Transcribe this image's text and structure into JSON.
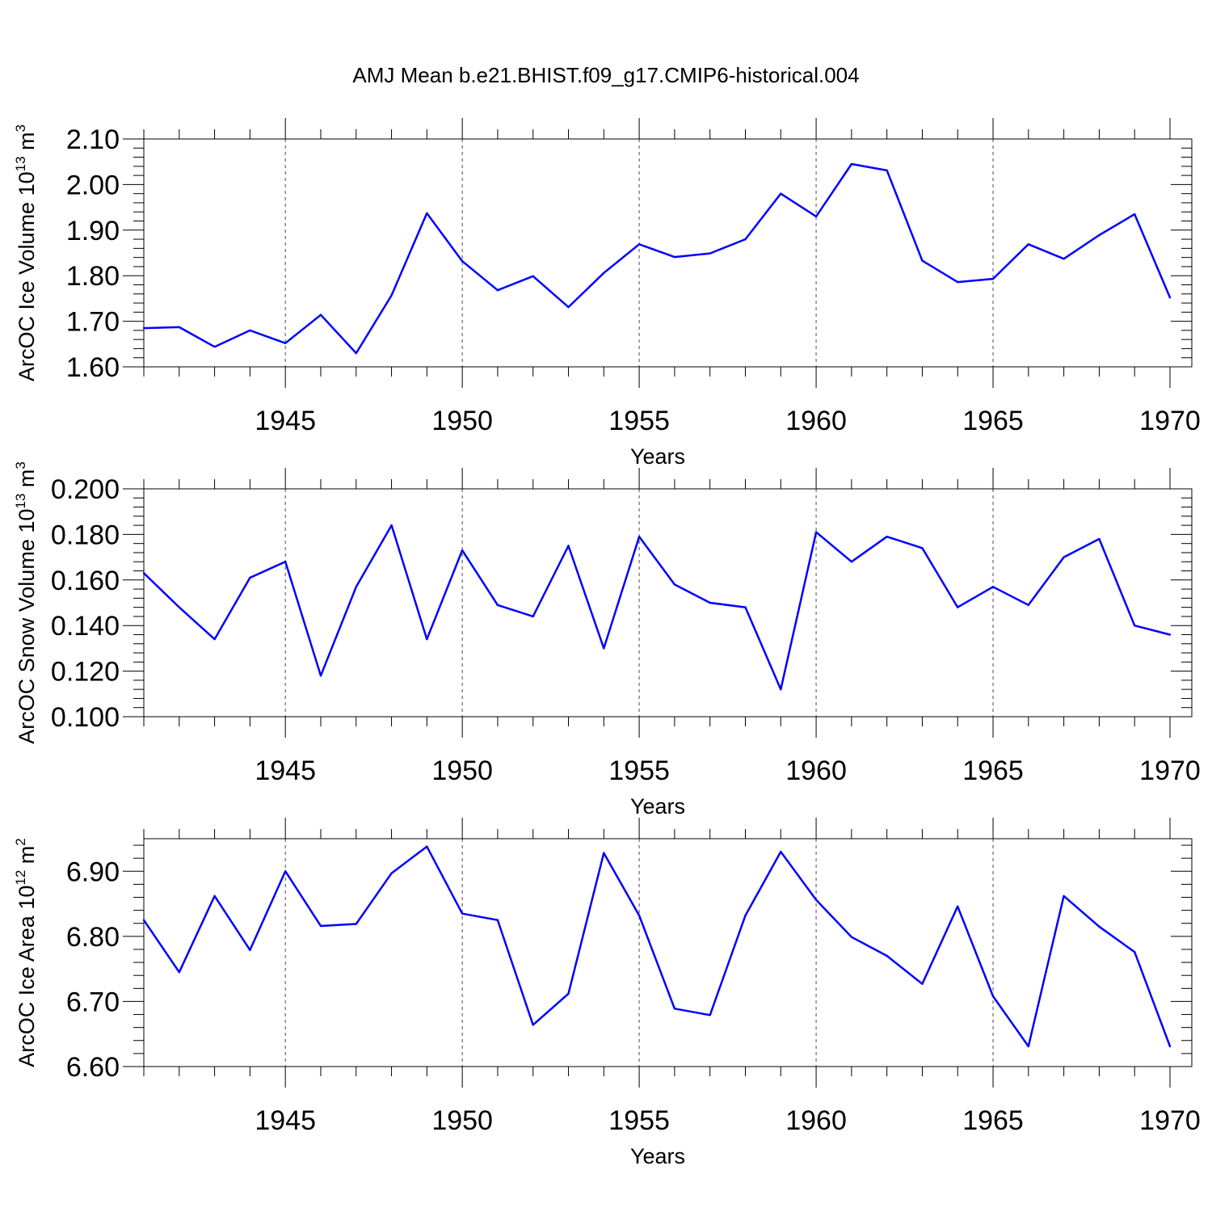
{
  "title": "AMJ Mean b.e21.BHIST.f09_g17.CMIP6-historical.004",
  "colors": {
    "series": "#0000ff",
    "axis": "#000000",
    "grid": "#000000"
  },
  "chart_data": [
    {
      "type": "line",
      "xlabel": "Years",
      "ylabel": {
        "text": "ArcOC Ice Volume 10",
        "sup": "13",
        "unit": " m",
        "unit_sup": "3"
      },
      "xlim": [
        1941,
        1970
      ],
      "ylim": [
        1.6,
        2.1
      ],
      "xticks": [
        1945,
        1950,
        1955,
        1960,
        1965,
        1970
      ],
      "yticks": [
        1.6,
        1.7,
        1.8,
        1.9,
        2.0,
        2.1
      ],
      "ytick_labels": [
        "1.60",
        "1.70",
        "1.80",
        "1.90",
        "2.00",
        "2.10"
      ],
      "grid": "vertical dashed at major x ticks",
      "x": [
        1941,
        1942,
        1943,
        1944,
        1945,
        1946,
        1947,
        1948,
        1949,
        1950,
        1951,
        1952,
        1953,
        1954,
        1955,
        1956,
        1957,
        1958,
        1959,
        1960,
        1961,
        1962,
        1963,
        1964,
        1965,
        1966,
        1967,
        1968,
        1969,
        1970
      ],
      "y": [
        1.685,
        1.687,
        1.644,
        1.68,
        1.652,
        1.714,
        1.63,
        1.757,
        1.937,
        1.832,
        1.768,
        1.799,
        1.731,
        1.806,
        1.869,
        1.841,
        1.849,
        1.88,
        1.98,
        1.93,
        2.045,
        2.031,
        1.833,
        1.786,
        1.793,
        1.869,
        1.837,
        1.889,
        1.935,
        1.752
      ]
    },
    {
      "type": "line",
      "xlabel": "Years",
      "ylabel": {
        "text": "ArcOC Snow Volume 10",
        "sup": "13",
        "unit": " m",
        "unit_sup": "3"
      },
      "xlim": [
        1941,
        1970
      ],
      "ylim": [
        0.1,
        0.2
      ],
      "xticks": [
        1945,
        1950,
        1955,
        1960,
        1965,
        1970
      ],
      "yticks": [
        0.1,
        0.12,
        0.14,
        0.16,
        0.18,
        0.2
      ],
      "ytick_labels": [
        "0.100",
        "0.120",
        "0.140",
        "0.160",
        "0.180",
        "0.200"
      ],
      "grid": "vertical dashed at major x ticks",
      "x": [
        1941,
        1942,
        1943,
        1944,
        1945,
        1946,
        1947,
        1948,
        1949,
        1950,
        1951,
        1952,
        1953,
        1954,
        1955,
        1956,
        1957,
        1958,
        1959,
        1960,
        1961,
        1962,
        1963,
        1964,
        1965,
        1966,
        1967,
        1968,
        1969,
        1970
      ],
      "y": [
        0.163,
        0.148,
        0.134,
        0.161,
        0.168,
        0.118,
        0.157,
        0.184,
        0.134,
        0.173,
        0.149,
        0.144,
        0.175,
        0.13,
        0.179,
        0.158,
        0.15,
        0.148,
        0.112,
        0.181,
        0.168,
        0.179,
        0.174,
        0.148,
        0.157,
        0.149,
        0.17,
        0.178,
        0.14,
        0.136
      ]
    },
    {
      "type": "line",
      "xlabel": "Years",
      "ylabel": {
        "text": "ArcOC Ice Area 10",
        "sup": "12",
        "unit": " m",
        "unit_sup": "2"
      },
      "xlim": [
        1941,
        1970
      ],
      "ylim": [
        6.6,
        6.95
      ],
      "xticks": [
        1945,
        1950,
        1955,
        1960,
        1965,
        1970
      ],
      "yticks": [
        6.6,
        6.7,
        6.8,
        6.9
      ],
      "ytick_labels": [
        "6.60",
        "6.70",
        "6.80",
        "6.90"
      ],
      "grid": "vertical dashed at major x ticks",
      "x": [
        1941,
        1942,
        1943,
        1944,
        1945,
        1946,
        1947,
        1948,
        1949,
        1950,
        1951,
        1952,
        1953,
        1954,
        1955,
        1956,
        1957,
        1958,
        1959,
        1960,
        1961,
        1962,
        1963,
        1964,
        1965,
        1966,
        1967,
        1968,
        1969,
        1970
      ],
      "y": [
        6.825,
        6.745,
        6.862,
        6.779,
        6.9,
        6.816,
        6.819,
        6.897,
        6.938,
        6.835,
        6.825,
        6.664,
        6.712,
        6.928,
        6.832,
        6.689,
        6.679,
        6.832,
        6.93,
        6.856,
        6.799,
        6.77,
        6.727,
        6.846,
        6.708,
        6.631,
        6.862,
        6.815,
        6.776,
        6.631
      ]
    }
  ]
}
